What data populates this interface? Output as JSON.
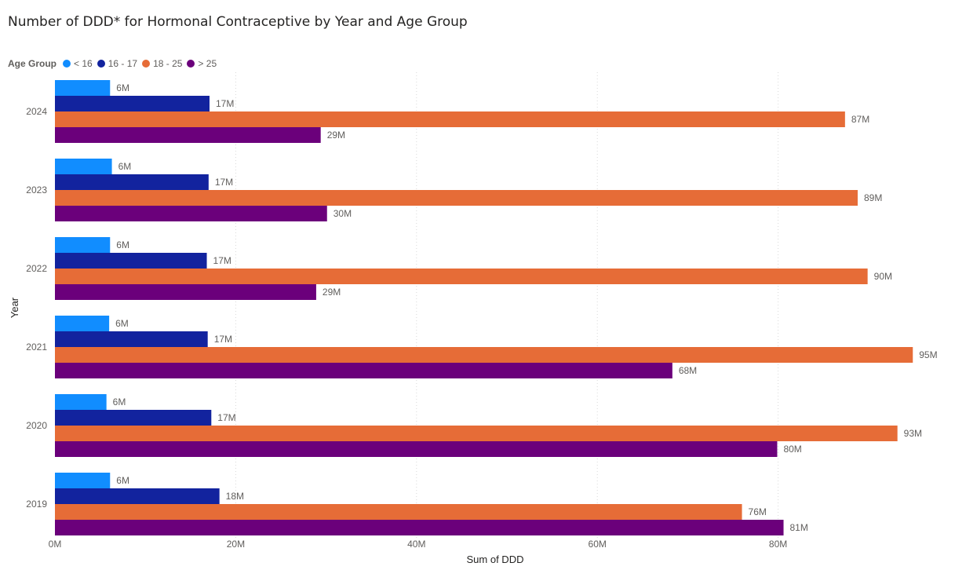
{
  "chart_data": {
    "type": "bar",
    "orientation": "horizontal",
    "title": "Number of DDD* for Hormonal Contraceptive by Year and Age Group",
    "legend_title": "Age Group",
    "legend_position": "top-left",
    "xlabel": "Sum of DDD",
    "ylabel": "Year",
    "xlim": [
      0,
      95
    ],
    "x_ticks": [
      0,
      20,
      40,
      60,
      80
    ],
    "x_tick_labels": [
      "0M",
      "20M",
      "40M",
      "60M",
      "80M"
    ],
    "grid": "vertical-dotted",
    "categories": [
      "2024",
      "2023",
      "2022",
      "2021",
      "2020",
      "2019"
    ],
    "series": [
      {
        "name": "< 16",
        "color": "#118DFF",
        "values": [
          6.1,
          6.3,
          6.1,
          6.0,
          5.7,
          6.1
        ],
        "labels": [
          "6M",
          "6M",
          "6M",
          "6M",
          "6M",
          "6M"
        ]
      },
      {
        "name": "16 - 17",
        "color": "#12239E",
        "values": [
          17.1,
          17.0,
          16.8,
          16.9,
          17.3,
          18.2
        ],
        "labels": [
          "17M",
          "17M",
          "17M",
          "17M",
          "17M",
          "18M"
        ]
      },
      {
        "name": "18 - 25",
        "color": "#E66C37",
        "values": [
          87.4,
          88.8,
          89.9,
          94.9,
          93.2,
          76.0
        ],
        "labels": [
          "87M",
          "89M",
          "90M",
          "95M",
          "93M",
          "76M"
        ]
      },
      {
        "name": "> 25",
        "color": "#6B007B",
        "values": [
          29.4,
          30.1,
          28.9,
          68.3,
          79.9,
          80.6
        ],
        "labels": [
          "29M",
          "30M",
          "29M",
          "68M",
          "80M",
          "81M"
        ]
      }
    ]
  }
}
